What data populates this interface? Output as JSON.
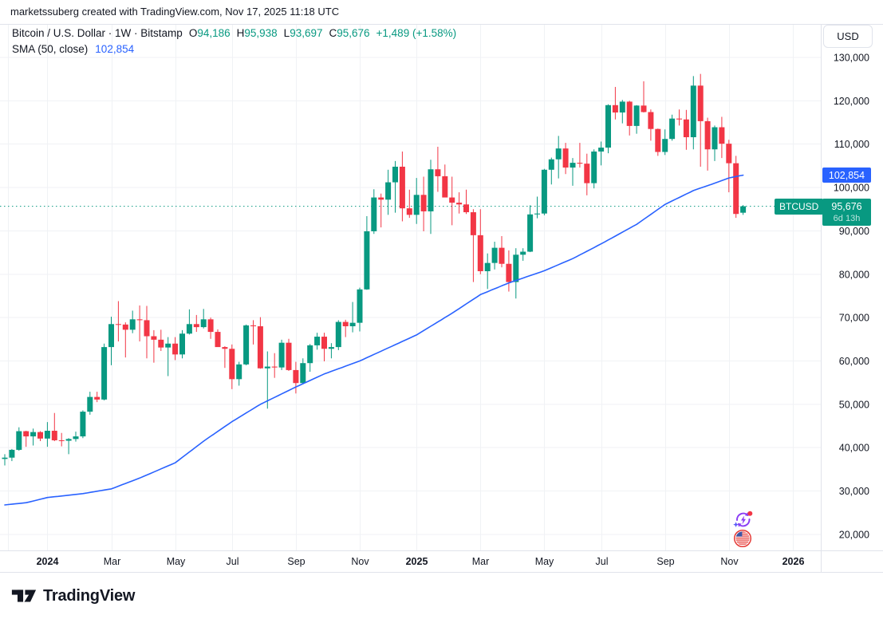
{
  "ui": {
    "attribution": "marketssuberg created with TradingView.com, Nov 17, 2025 11:18 UTC",
    "legend": {
      "title": "Bitcoin / U.S. Dollar · 1W · Bitstamp",
      "ohlc": [
        {
          "label": "O",
          "value": "94,186"
        },
        {
          "label": "H",
          "value": "95,938"
        },
        {
          "label": "L",
          "value": "93,697"
        },
        {
          "label": "C",
          "value": "95,676"
        }
      ],
      "change": "+1,489 (+1.58%)",
      "sma_label": "SMA (50, close)",
      "sma_value": "102,854"
    },
    "price_axis": {
      "currency": "USD",
      "sma_label_value": "102,854",
      "symbol_tag": "BTCUSD",
      "last_price": "95,676",
      "countdown": "6d 13h"
    },
    "footer": {
      "brand": "TradingView"
    }
  },
  "colors": {
    "up": "#089981",
    "down": "#F23645",
    "sma": "#2962FF",
    "price_line": "#089981",
    "grid": "#F0F2F5",
    "border": "#E0E3EB",
    "text": "#131722",
    "axis_text": "#131722"
  },
  "chart_data": {
    "type": "candlestick",
    "title": "Bitcoin / U.S. Dollar · 1W · Bitstamp",
    "interval": "1W",
    "unit": "thousands of USD",
    "last_price": 95.676,
    "sma50": {
      "name": "SMA (50, close)",
      "current": 102.854,
      "waypoints_week_value": [
        [
          0,
          26.8
        ],
        [
          3,
          27.3
        ],
        [
          6,
          28.5
        ],
        [
          11,
          29.4
        ],
        [
          15,
          30.5
        ],
        [
          19,
          33.0
        ],
        [
          24,
          36.5
        ],
        [
          28,
          41.5
        ],
        [
          32,
          46.0
        ],
        [
          36,
          50.0
        ],
        [
          41,
          54.0
        ],
        [
          45,
          57.0
        ],
        [
          50,
          60.0
        ],
        [
          54,
          63.0
        ],
        [
          58,
          66.0
        ],
        [
          63,
          71.0
        ],
        [
          67,
          75.3
        ],
        [
          71,
          78.0
        ],
        [
          76,
          80.8
        ],
        [
          80,
          83.6
        ],
        [
          84,
          87.0
        ],
        [
          89,
          91.5
        ],
        [
          93,
          96.1
        ],
        [
          97,
          99.3
        ],
        [
          100,
          101.0
        ],
        [
          102,
          102.2
        ],
        [
          104,
          102.854
        ]
      ]
    },
    "y_axis": {
      "ticks": [
        {
          "v": 130,
          "label": "130,000"
        },
        {
          "v": 120,
          "label": "120,000"
        },
        {
          "v": 110,
          "label": "110,000"
        },
        {
          "v": 100,
          "label": "100,000"
        },
        {
          "v": 90,
          "label": "90,000"
        },
        {
          "v": 80,
          "label": "80,000"
        },
        {
          "v": 70,
          "label": "70,000"
        },
        {
          "v": 60,
          "label": "60,000"
        },
        {
          "v": 50,
          "label": "50,000"
        },
        {
          "v": 40,
          "label": "40,000"
        },
        {
          "v": 30,
          "label": "30,000"
        },
        {
          "v": 20,
          "label": "20,000"
        }
      ],
      "visible_range_k": [
        16.3,
        137.7
      ]
    },
    "x_axis": {
      "labels": [
        {
          "label": "",
          "week": 0.45,
          "year": false
        },
        {
          "label": "2024",
          "week": 6,
          "year": true
        },
        {
          "label": "Mar",
          "week": 15,
          "year": false
        },
        {
          "label": "May",
          "week": 24,
          "year": false
        },
        {
          "label": "Jul",
          "week": 32,
          "year": false
        },
        {
          "label": "Sep",
          "week": 41,
          "year": false
        },
        {
          "label": "Nov",
          "week": 50,
          "year": false
        },
        {
          "label": "2025",
          "week": 58,
          "year": true
        },
        {
          "label": "Mar",
          "week": 67,
          "year": false
        },
        {
          "label": "May",
          "week": 76,
          "year": false
        },
        {
          "label": "Jul",
          "week": 84,
          "year": false
        },
        {
          "label": "Sep",
          "week": 93,
          "year": false
        },
        {
          "label": "Nov",
          "week": 102,
          "year": false
        },
        {
          "label": "2026",
          "week": 111,
          "year": true
        }
      ]
    },
    "candles": [
      [
        37.4,
        38.5,
        35.9,
        37.7
      ],
      [
        37.7,
        39.7,
        36.9,
        39.5
      ],
      [
        39.5,
        44.7,
        39.3,
        43.8
      ],
      [
        43.8,
        43.9,
        40.2,
        42.6
      ],
      [
        42.6,
        44.4,
        40.5,
        43.6
      ],
      [
        43.6,
        43.8,
        41.5,
        42.1
      ],
      [
        42.1,
        45.9,
        40.2,
        43.9
      ],
      [
        43.9,
        48.0,
        41.5,
        41.7
      ],
      [
        41.7,
        43.4,
        40.3,
        41.6
      ],
      [
        41.6,
        42.2,
        38.5,
        42.0
      ],
      [
        42.0,
        43.7,
        41.4,
        42.6
      ],
      [
        42.6,
        48.6,
        42.2,
        48.3
      ],
      [
        48.3,
        52.9,
        47.6,
        51.7
      ],
      [
        51.7,
        52.9,
        50.5,
        51.1
      ],
      [
        51.1,
        64.0,
        50.9,
        63.2
      ],
      [
        63.2,
        70.2,
        59.0,
        68.5
      ],
      [
        68.5,
        73.8,
        64.5,
        68.4
      ],
      [
        68.4,
        68.9,
        60.8,
        67.2
      ],
      [
        67.2,
        71.6,
        66.4,
        69.6
      ],
      [
        69.6,
        72.8,
        64.5,
        69.4
      ],
      [
        69.4,
        72.7,
        60.6,
        65.7
      ],
      [
        65.7,
        67.1,
        59.6,
        64.9
      ],
      [
        64.9,
        67.2,
        62.3,
        63.1
      ],
      [
        63.1,
        65.5,
        56.5,
        64.0
      ],
      [
        64.0,
        65.5,
        60.2,
        61.5
      ],
      [
        61.5,
        67.1,
        60.6,
        66.3
      ],
      [
        66.3,
        71.9,
        66.1,
        68.5
      ],
      [
        68.5,
        70.6,
        66.7,
        67.8
      ],
      [
        67.8,
        72.0,
        67.5,
        69.6
      ],
      [
        69.6,
        70.0,
        65.1,
        66.7
      ],
      [
        66.7,
        67.3,
        63.4,
        63.2
      ],
      [
        63.2,
        63.4,
        58.4,
        62.8
      ],
      [
        62.8,
        63.8,
        53.5,
        55.8
      ],
      [
        55.8,
        59.8,
        54.3,
        59.2
      ],
      [
        59.2,
        68.4,
        59.0,
        68.2
      ],
      [
        68.2,
        69.4,
        63.8,
        68.0
      ],
      [
        68.0,
        70.1,
        58.2,
        58.3
      ],
      [
        58.3,
        62.2,
        49.0,
        58.7
      ],
      [
        58.7,
        61.8,
        56.1,
        58.5
      ],
      [
        58.5,
        64.9,
        57.9,
        64.2
      ],
      [
        64.2,
        65.1,
        57.7,
        57.9
      ],
      [
        57.9,
        59.8,
        52.5,
        54.9
      ],
      [
        54.9,
        60.6,
        54.6,
        59.5
      ],
      [
        59.5,
        63.9,
        57.5,
        63.6
      ],
      [
        63.6,
        66.5,
        62.6,
        65.6
      ],
      [
        65.6,
        66.5,
        59.9,
        62.8
      ],
      [
        62.8,
        64.1,
        60.6,
        63.2
      ],
      [
        63.2,
        69.4,
        62.5,
        69.0
      ],
      [
        69.0,
        69.5,
        65.5,
        68.0
      ],
      [
        68.0,
        73.6,
        66.6,
        68.8
      ],
      [
        68.8,
        76.9,
        66.8,
        76.5
      ],
      [
        76.5,
        93.4,
        76.4,
        89.9
      ],
      [
        89.9,
        99.6,
        89.3,
        97.7
      ],
      [
        97.7,
        98.6,
        90.8,
        97.2
      ],
      [
        97.2,
        104.1,
        93.7,
        101.2
      ],
      [
        101.2,
        106.1,
        94.2,
        104.8
      ],
      [
        104.8,
        108.3,
        92.2,
        95.2
      ],
      [
        95.2,
        99.5,
        93.0,
        93.7
      ],
      [
        93.7,
        102.2,
        91.6,
        98.3
      ],
      [
        98.3,
        102.5,
        89.9,
        94.5
      ],
      [
        94.5,
        106.4,
        89.3,
        104.2
      ],
      [
        104.2,
        109.4,
        99.0,
        102.6
      ],
      [
        102.6,
        105.3,
        97.8,
        97.7
      ],
      [
        97.7,
        102.5,
        91.3,
        96.5
      ],
      [
        96.5,
        98.9,
        94.0,
        96.1
      ],
      [
        96.1,
        99.5,
        93.9,
        94.3
      ],
      [
        94.3,
        95.0,
        78.2,
        89.0
      ],
      [
        89.0,
        95.0,
        80.0,
        80.7
      ],
      [
        80.7,
        84.8,
        76.6,
        82.6
      ],
      [
        82.6,
        87.5,
        81.1,
        86.1
      ],
      [
        86.1,
        88.8,
        81.6,
        82.4
      ],
      [
        82.4,
        85.5,
        76.0,
        78.2
      ],
      [
        78.2,
        86.0,
        74.4,
        84.5
      ],
      [
        84.5,
        86.0,
        83.1,
        85.2
      ],
      [
        85.2,
        95.9,
        85.1,
        93.8
      ],
      [
        93.8,
        97.9,
        92.9,
        94.0
      ],
      [
        94.0,
        104.3,
        93.6,
        104.1
      ],
      [
        104.1,
        106.9,
        100.7,
        106.5
      ],
      [
        106.5,
        111.9,
        102.1,
        109.0
      ],
      [
        109.0,
        110.3,
        103.1,
        104.6
      ],
      [
        104.6,
        106.8,
        100.4,
        105.7
      ],
      [
        105.7,
        110.3,
        104.6,
        105.5
      ],
      [
        105.5,
        107.8,
        98.2,
        101.0
      ],
      [
        101.0,
        108.8,
        99.8,
        108.3
      ],
      [
        108.3,
        110.6,
        105.1,
        109.2
      ],
      [
        109.2,
        119.2,
        107.9,
        119.0
      ],
      [
        119.0,
        123.2,
        115.7,
        117.3
      ],
      [
        117.3,
        120.2,
        114.8,
        119.8
      ],
      [
        119.8,
        120.0,
        112.0,
        114.2
      ],
      [
        114.2,
        119.0,
        112.4,
        118.9
      ],
      [
        118.9,
        124.5,
        117.3,
        117.4
      ],
      [
        117.4,
        118.0,
        110.8,
        113.5
      ],
      [
        113.5,
        113.6,
        107.3,
        108.2
      ],
      [
        108.2,
        113.4,
        107.5,
        111.2
      ],
      [
        111.2,
        116.8,
        110.8,
        115.9
      ],
      [
        115.9,
        118.0,
        114.3,
        115.7
      ],
      [
        115.7,
        117.9,
        108.7,
        111.6
      ],
      [
        111.6,
        125.7,
        108.8,
        123.5
      ],
      [
        123.5,
        126.2,
        104.8,
        115.3
      ],
      [
        115.3,
        116.1,
        103.9,
        108.8
      ],
      [
        108.8,
        114.3,
        106.1,
        113.9
      ],
      [
        113.9,
        116.3,
        106.8,
        110.1
      ],
      [
        110.1,
        111.0,
        98.9,
        105.6
      ],
      [
        105.6,
        107.3,
        93.0,
        93.9
      ],
      [
        94.186,
        95.938,
        93.697,
        95.676
      ]
    ]
  }
}
